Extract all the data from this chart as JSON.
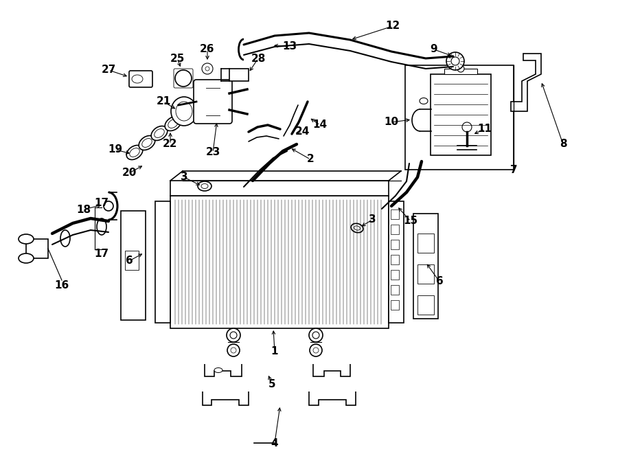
{
  "bg_color": "#ffffff",
  "lc": "#000000",
  "figsize": [
    9.0,
    6.61
  ],
  "dpi": 100,
  "xlim": [
    0,
    900
  ],
  "ylim": [
    0,
    661
  ]
}
